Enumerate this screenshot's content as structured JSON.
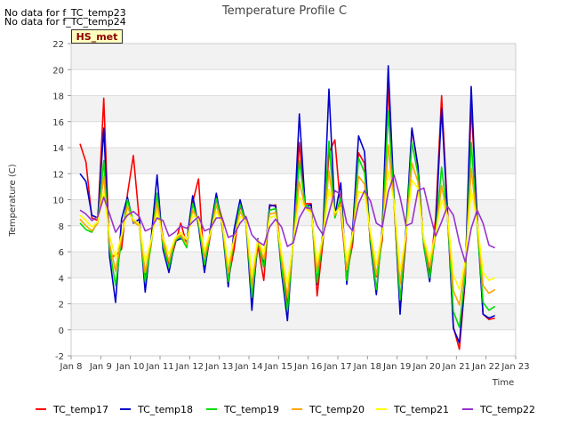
{
  "notes": [
    "No data for f_TC_temp23",
    "No data for f_TC_temp24"
  ],
  "site_tag": "HS_met",
  "chart_data": {
    "type": "line",
    "title": "Temperature Profile C",
    "xlabel": "Time",
    "ylabel": "Temperature (C)",
    "ylim": [
      -2,
      22
    ],
    "yticks": [
      -2,
      0,
      2,
      4,
      6,
      8,
      10,
      12,
      14,
      16,
      18,
      20,
      22
    ],
    "xlim": [
      8,
      23
    ],
    "xticks": [
      8,
      9,
      10,
      11,
      12,
      13,
      14,
      15,
      16,
      17,
      18,
      19,
      20,
      21,
      22,
      23
    ],
    "xticklabels": [
      "Jan 8",
      "Jan 9",
      "Jan 10",
      "Jan 11",
      "Jan 12",
      "Jan 13",
      "Jan 14",
      "Jan 15",
      "Jan 16",
      "Jan 17",
      "Jan 18",
      "Jan 19",
      "Jan 20",
      "Jan 21",
      "Jan 22",
      "Jan 23"
    ],
    "grid": true,
    "legend_position": "bottom",
    "x": [
      8.3,
      8.5,
      8.7,
      8.9,
      9.1,
      9.3,
      9.5,
      9.7,
      9.9,
      10.1,
      10.3,
      10.5,
      10.7,
      10.9,
      11.1,
      11.3,
      11.5,
      11.7,
      11.9,
      12.1,
      12.3,
      12.5,
      12.7,
      12.9,
      13.1,
      13.3,
      13.5,
      13.7,
      13.9,
      14.1,
      14.3,
      14.5,
      14.7,
      14.9,
      15.1,
      15.3,
      15.5,
      15.7,
      15.9,
      16.1,
      16.3,
      16.5,
      16.7,
      16.9,
      17.1,
      17.3,
      17.5,
      17.7,
      17.9,
      18.1,
      18.3,
      18.5,
      18.7,
      18.9,
      19.1,
      19.3,
      19.5,
      19.7,
      19.9,
      20.1,
      20.3,
      20.5,
      20.7,
      20.9,
      21.1,
      21.3,
      21.5,
      21.7,
      21.9,
      22.1,
      22.3
    ],
    "series": [
      {
        "name": "TC_temp17",
        "color": "#ff0000",
        "values": [
          14.3,
          12.9,
          8.6,
          8.4,
          17.8,
          5.6,
          5.7,
          6.2,
          10.4,
          13.4,
          8.4,
          4.2,
          6.7,
          9.8,
          7.2,
          4.9,
          6.5,
          8.2,
          6.6,
          9.8,
          11.6,
          4.6,
          7.3,
          10.1,
          8.5,
          3.8,
          6.2,
          9.5,
          8.5,
          2.3,
          6.5,
          3.8,
          9.5,
          9.6,
          5.5,
          1.8,
          7.1,
          14.4,
          9.7,
          9.7,
          2.6,
          6.8,
          13.6,
          14.6,
          9.2,
          4.2,
          6.6,
          13.6,
          12.8,
          6.6,
          4.1,
          6.9,
          18.8,
          9.6,
          1.8,
          6.9,
          15.5,
          12.6,
          6.5,
          4.3,
          8.6,
          18.0,
          9.3,
          0.2,
          -1.5,
          3.8,
          17.2,
          8.8,
          1.2,
          0.8,
          0.9
        ]
      },
      {
        "name": "TC_temp18",
        "color": "#0000cc",
        "values": [
          12.0,
          11.4,
          8.8,
          8.6,
          15.5,
          5.6,
          2.1,
          8.5,
          10.2,
          8.2,
          8.5,
          2.9,
          7.0,
          11.9,
          6.2,
          4.4,
          6.8,
          7.0,
          6.8,
          10.3,
          8.0,
          4.4,
          7.8,
          10.5,
          7.9,
          3.3,
          7.7,
          10.0,
          8.2,
          1.5,
          7.0,
          5.0,
          9.6,
          9.5,
          4.4,
          0.7,
          7.2,
          16.6,
          9.5,
          9.6,
          3.5,
          7.6,
          18.5,
          8.8,
          11.3,
          3.5,
          7.7,
          14.9,
          13.7,
          6.6,
          2.7,
          7.9,
          20.3,
          10.0,
          1.2,
          7.8,
          15.5,
          12.6,
          6.4,
          3.7,
          7.8,
          17.0,
          8.9,
          0.1,
          -1.0,
          4.1,
          18.7,
          8.3,
          1.2,
          0.9,
          1.1
        ]
      },
      {
        "name": "TC_temp19",
        "color": "#00dd00",
        "values": [
          8.2,
          7.7,
          7.5,
          8.3,
          13.0,
          6.2,
          3.4,
          7.0,
          10.0,
          8.3,
          8.0,
          3.7,
          6.5,
          10.5,
          6.5,
          4.8,
          6.8,
          7.2,
          6.3,
          9.7,
          8.2,
          5.0,
          7.4,
          10.1,
          8.1,
          3.7,
          7.0,
          9.6,
          8.3,
          2.5,
          6.8,
          4.8,
          9.2,
          9.3,
          4.8,
          1.5,
          6.9,
          13.0,
          9.6,
          9.3,
          3.6,
          7.2,
          14.5,
          8.6,
          10.2,
          3.8,
          7.2,
          13.2,
          12.1,
          6.9,
          3.1,
          7.4,
          16.8,
          9.8,
          2.3,
          7.4,
          14.4,
          12.0,
          6.4,
          4.0,
          7.4,
          12.5,
          8.7,
          1.4,
          0.2,
          4.3,
          14.4,
          8.0,
          2.1,
          1.5,
          1.8
        ]
      },
      {
        "name": "TC_temp20",
        "color": "#ffa500",
        "values": [
          8.5,
          8.0,
          7.6,
          8.2,
          11.8,
          6.6,
          4.5,
          7.1,
          9.5,
          8.3,
          8.0,
          4.4,
          6.7,
          9.8,
          6.8,
          5.3,
          6.9,
          7.3,
          6.6,
          9.2,
          8.4,
          5.6,
          7.4,
          9.6,
          8.1,
          4.4,
          7.0,
          9.1,
          8.3,
          3.4,
          6.8,
          5.4,
          8.9,
          9.0,
          5.4,
          2.6,
          6.8,
          11.4,
          9.4,
          9.1,
          4.5,
          7.2,
          12.2,
          8.8,
          9.7,
          4.6,
          7.3,
          11.8,
          11.2,
          7.2,
          4.2,
          7.4,
          14.2,
          9.7,
          3.5,
          7.3,
          12.8,
          11.4,
          6.8,
          4.8,
          7.4,
          11.1,
          8.7,
          3.0,
          1.9,
          4.9,
          12.4,
          8.2,
          3.4,
          2.8,
          3.1
        ]
      },
      {
        "name": "TC_temp21",
        "color": "#ffff00",
        "values": [
          8.8,
          8.4,
          7.9,
          8.3,
          10.6,
          7.2,
          5.5,
          7.3,
          9.0,
          8.5,
          8.1,
          5.2,
          6.9,
          9.1,
          7.1,
          5.8,
          7.0,
          7.5,
          6.9,
          8.8,
          8.5,
          6.1,
          7.5,
          9.1,
          8.2,
          5.1,
          7.0,
          8.7,
          8.4,
          4.2,
          6.9,
          5.9,
          8.6,
          8.8,
          5.9,
          3.5,
          6.8,
          10.2,
          9.3,
          9.0,
          5.2,
          7.2,
          10.8,
          9.0,
          9.4,
          5.3,
          7.4,
          10.6,
          10.5,
          7.5,
          5.0,
          7.5,
          12.2,
          9.8,
          4.5,
          7.3,
          11.5,
          10.9,
          7.0,
          5.4,
          7.5,
          10.0,
          8.8,
          4.2,
          3.1,
          5.3,
          10.8,
          8.3,
          4.4,
          3.8,
          4.0
        ]
      },
      {
        "name": "TC_temp22",
        "color": "#9932cc",
        "values": [
          9.2,
          8.9,
          8.4,
          8.7,
          10.2,
          8.9,
          7.5,
          8.2,
          8.8,
          9.1,
          8.7,
          7.6,
          7.8,
          8.6,
          8.4,
          7.2,
          7.5,
          8.0,
          7.8,
          8.3,
          8.7,
          7.6,
          7.8,
          8.6,
          8.6,
          7.1,
          7.3,
          8.2,
          8.7,
          7.3,
          6.8,
          6.5,
          7.9,
          8.5,
          7.9,
          6.4,
          6.7,
          8.6,
          9.4,
          9.3,
          8.0,
          7.3,
          9.0,
          10.7,
          10.4,
          8.2,
          7.6,
          9.7,
          10.7,
          9.9,
          8.2,
          7.9,
          10.6,
          11.9,
          10.2,
          8.0,
          8.2,
          10.7,
          10.9,
          9.0,
          7.2,
          8.3,
          9.5,
          8.8,
          6.7,
          5.2,
          7.8,
          9.2,
          8.2,
          6.5,
          6.3
        ]
      }
    ]
  }
}
